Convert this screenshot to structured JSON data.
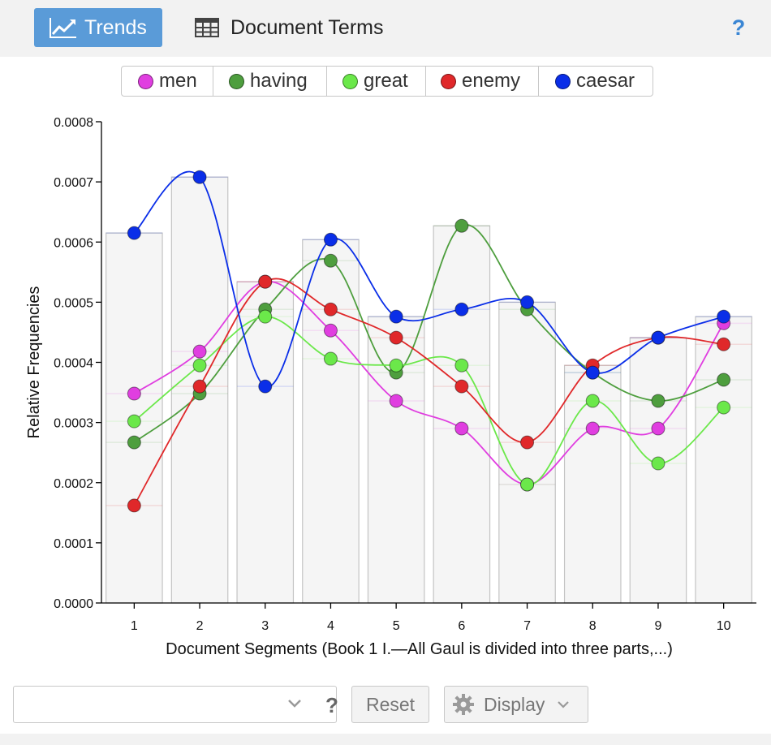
{
  "tabs": {
    "trends_label": "Trends",
    "document_terms_label": "Document Terms",
    "help_label": "?"
  },
  "icons": {
    "trends": "line-chart-icon",
    "document_terms": "table-grid-icon",
    "display": "gear-icon",
    "dropdown": "chevron-down-icon",
    "help": "question-mark-icon"
  },
  "colors": {
    "active_tab": "#5a9bd8",
    "help_blue": "#3a86d4"
  },
  "legend": [
    {
      "label": "men",
      "color": "#e03ee0"
    },
    {
      "label": "having",
      "color": "#4e9e3e"
    },
    {
      "label": "great",
      "color": "#6be84a"
    },
    {
      "label": "enemy",
      "color": "#e0282a"
    },
    {
      "label": "caesar",
      "color": "#0a2ee8"
    }
  ],
  "controls": {
    "combo_value": "",
    "combo_help": "?",
    "reset_label": "Reset",
    "display_label": "Display"
  },
  "chart_data": {
    "type": "line",
    "xlabel": "Document Segments (Book 1 I.—All Gaul is divided into three parts,...)",
    "ylabel": "Relative Frequencies",
    "ylim": [
      0,
      0.0008
    ],
    "yticks": [
      "0.0000",
      "0.0001",
      "0.0002",
      "0.0003",
      "0.0004",
      "0.0005",
      "0.0006",
      "0.0007",
      "0.0008"
    ],
    "categories": [
      "1",
      "2",
      "3",
      "4",
      "5",
      "6",
      "7",
      "8",
      "9",
      "10"
    ],
    "series": [
      {
        "name": "men",
        "color": "#e03ee0",
        "values": [
          0.000348,
          0.000418,
          0.000534,
          0.000453,
          0.000336,
          0.00029,
          0.000197,
          0.00029,
          0.00029,
          0.000465
        ]
      },
      {
        "name": "having",
        "color": "#4e9e3e",
        "values": [
          0.000267,
          0.000348,
          0.000488,
          0.000569,
          0.000383,
          0.000627,
          0.000488,
          0.000383,
          0.000336,
          0.000371
        ]
      },
      {
        "name": "great",
        "color": "#6be84a",
        "values": [
          0.000302,
          0.000395,
          0.000476,
          0.000406,
          0.000395,
          0.000395,
          0.000197,
          0.000336,
          0.000232,
          0.000325
        ]
      },
      {
        "name": "enemy",
        "color": "#e0282a",
        "values": [
          0.000162,
          0.00036,
          0.000534,
          0.000488,
          0.000441,
          0.00036,
          0.000267,
          0.000395,
          0.000441,
          0.00043
        ]
      },
      {
        "name": "caesar",
        "color": "#0a2ee8",
        "values": [
          0.000615,
          0.000708,
          0.00036,
          0.000604,
          0.000476,
          0.000488,
          0.0005,
          0.000383,
          0.000441,
          0.000476
        ]
      }
    ],
    "grid": false,
    "legend_position": "top-center"
  }
}
